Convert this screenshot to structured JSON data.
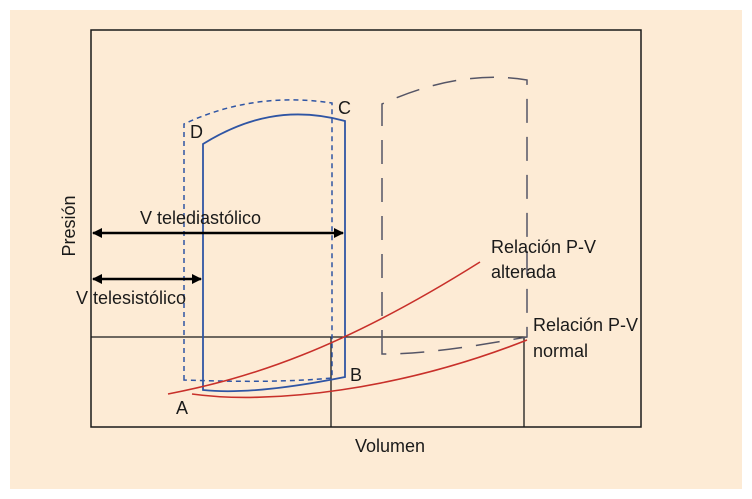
{
  "diagram": {
    "axes": {
      "y_label": "Presión",
      "x_label": "Volumen"
    },
    "points": {
      "a": "A",
      "b": "B",
      "c": "C",
      "d": "D"
    },
    "labels": {
      "end_diastolic": "V telediastólico",
      "end_systolic": "V telesistólico",
      "pv_altered_1": "Relación P-V",
      "pv_altered_2": "alterada",
      "pv_normal_1": "Relación P-V",
      "pv_normal_2": "normal"
    },
    "colors": {
      "background": "#fdebd5",
      "loop_normal": "#2f55a4",
      "pv_curves": "#c8302a",
      "outline": "#1a1a1a",
      "dashed_loop": "#2f55a4",
      "long_dash_loop": "#555566"
    }
  }
}
